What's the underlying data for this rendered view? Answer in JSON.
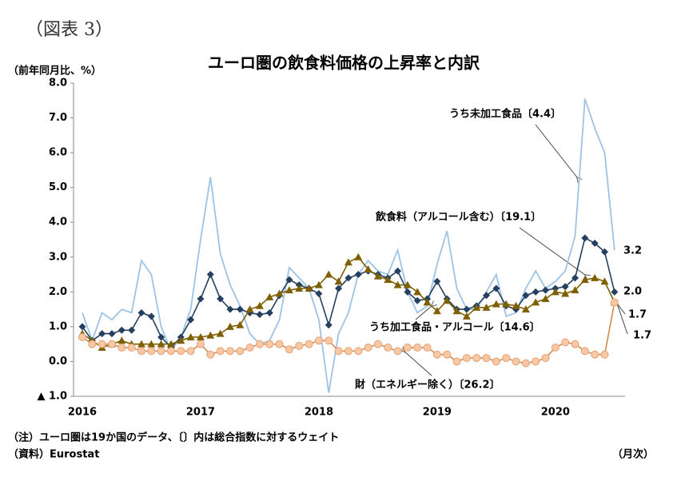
{
  "figure_label": "（図表 3）",
  "chart_data": {
    "type": "line",
    "title": "ユーロ圏の飲食料価格の上昇率と内訳",
    "y_axis_label": "（前年同月比、%）",
    "x_axis_label": "（月次）",
    "notes": [
      "（注）ユーロ圏は19か国のデータ、〔〕内は総合指数に対するウェイト",
      "（資料）Eurostat"
    ],
    "categories": [
      "2016",
      null,
      null,
      null,
      null,
      null,
      null,
      null,
      null,
      null,
      null,
      null,
      "2017",
      null,
      null,
      null,
      null,
      null,
      null,
      null,
      null,
      null,
      null,
      null,
      "2018",
      null,
      null,
      null,
      null,
      null,
      null,
      null,
      null,
      null,
      null,
      null,
      "2019",
      null,
      null,
      null,
      null,
      null,
      null,
      null,
      null,
      null,
      null,
      null,
      "2020",
      null,
      null,
      null,
      null,
      null,
      null
    ],
    "ylim": [
      -1,
      8
    ],
    "yticks": [
      {
        "value": 8,
        "label": "8.0"
      },
      {
        "value": 7,
        "label": "7.0"
      },
      {
        "value": 6,
        "label": "6.0"
      },
      {
        "value": 5,
        "label": "5.0"
      },
      {
        "value": 4,
        "label": "4.0"
      },
      {
        "value": 3,
        "label": "3.0"
      },
      {
        "value": 2,
        "label": "2.0"
      },
      {
        "value": 1,
        "label": "1.0"
      },
      {
        "value": 0,
        "label": "0.0"
      },
      {
        "value": -1,
        "label": "▲ 1.0"
      }
    ],
    "grid": false,
    "series": [
      {
        "name": "うち未加工食品〔4.4〕",
        "color": "#9dc3e6",
        "marker": "none",
        "values": [
          1.4,
          0.6,
          1.4,
          1.2,
          1.5,
          1.4,
          2.9,
          2.5,
          1.0,
          0.3,
          0.7,
          1.5,
          3.5,
          5.3,
          3.1,
          2.2,
          1.6,
          0.8,
          0.5,
          0.6,
          1.2,
          2.7,
          2.4,
          2.1,
          1.2,
          -0.9,
          0.8,
          1.4,
          2.5,
          2.9,
          2.6,
          2.5,
          3.2,
          2.0,
          1.4,
          1.6,
          2.8,
          3.75,
          2.1,
          1.5,
          1.5,
          2.0,
          2.5,
          1.3,
          1.4,
          2.1,
          2.6,
          2.1,
          2.3,
          2.6,
          3.6,
          7.55,
          6.7,
          6.0,
          3.2
        ],
        "value_labels": [
          null,
          null,
          null,
          null,
          null,
          null,
          null,
          null,
          null,
          null,
          null,
          null,
          null,
          null,
          null,
          null,
          null,
          null,
          null,
          null,
          null,
          null,
          null,
          null,
          null,
          null,
          null,
          null,
          null,
          null,
          null,
          null,
          null,
          null,
          null,
          null,
          null,
          null,
          null,
          null,
          null,
          null,
          null,
          null,
          null,
          null,
          null,
          null,
          null,
          null,
          null,
          null,
          null,
          null,
          "3.2"
        ]
      },
      {
        "name": "飲食料（アルコール含む）〔19.1〕",
        "color": "#243f60",
        "marker": "diamond",
        "values": [
          1.0,
          0.6,
          0.8,
          0.8,
          0.9,
          0.9,
          1.4,
          1.3,
          0.7,
          0.4,
          0.7,
          1.2,
          1.8,
          2.5,
          1.8,
          1.5,
          1.5,
          1.4,
          1.35,
          1.4,
          1.9,
          2.35,
          2.2,
          2.1,
          1.95,
          1.05,
          2.1,
          2.4,
          2.5,
          2.6,
          2.5,
          2.4,
          2.6,
          2.0,
          1.75,
          1.8,
          2.3,
          1.8,
          1.5,
          1.5,
          1.6,
          1.9,
          2.1,
          1.6,
          1.5,
          1.9,
          2.0,
          2.05,
          2.1,
          2.15,
          2.4,
          3.55,
          3.4,
          3.15,
          2.0
        ],
        "value_labels": [
          null,
          null,
          null,
          null,
          null,
          null,
          null,
          null,
          null,
          null,
          null,
          null,
          null,
          null,
          null,
          null,
          null,
          null,
          null,
          null,
          null,
          null,
          null,
          null,
          null,
          null,
          null,
          null,
          null,
          null,
          null,
          null,
          null,
          null,
          null,
          null,
          null,
          null,
          null,
          null,
          null,
          null,
          null,
          null,
          null,
          null,
          null,
          null,
          null,
          null,
          null,
          null,
          null,
          null,
          "2.0"
        ]
      },
      {
        "name": "うち加工食品・アルコール〔14.6〕",
        "color": "#7f6000",
        "marker": "triangle",
        "values": [
          0.8,
          0.6,
          0.4,
          0.5,
          0.6,
          0.5,
          0.5,
          0.5,
          0.5,
          0.5,
          0.6,
          0.7,
          0.7,
          0.75,
          0.8,
          1.0,
          1.05,
          1.5,
          1.6,
          1.85,
          1.95,
          2.05,
          2.1,
          2.1,
          2.2,
          2.5,
          2.3,
          2.85,
          3.0,
          2.65,
          2.45,
          2.35,
          2.2,
          2.2,
          2.0,
          1.7,
          1.45,
          1.75,
          1.45,
          1.3,
          1.55,
          1.55,
          1.65,
          1.65,
          1.6,
          1.5,
          1.7,
          1.8,
          2.0,
          1.95,
          2.05,
          2.35,
          2.4,
          2.3,
          1.7
        ],
        "value_labels": [
          null,
          null,
          null,
          null,
          null,
          null,
          null,
          null,
          null,
          null,
          null,
          null,
          null,
          null,
          null,
          null,
          null,
          null,
          null,
          null,
          null,
          null,
          null,
          null,
          null,
          null,
          null,
          null,
          null,
          null,
          null,
          null,
          null,
          null,
          null,
          null,
          null,
          null,
          null,
          null,
          null,
          null,
          null,
          null,
          null,
          null,
          null,
          null,
          null,
          null,
          null,
          null,
          null,
          null,
          "1.7"
        ]
      },
      {
        "name": "財（エネルギー除く）〔26.2〕",
        "color": "#d08a4e",
        "marker": "circle",
        "values": [
          0.7,
          0.5,
          0.5,
          0.5,
          0.4,
          0.4,
          0.3,
          0.3,
          0.3,
          0.3,
          0.3,
          0.3,
          0.5,
          0.2,
          0.3,
          0.3,
          0.3,
          0.4,
          0.5,
          0.5,
          0.5,
          0.35,
          0.45,
          0.5,
          0.6,
          0.6,
          0.3,
          0.3,
          0.3,
          0.4,
          0.5,
          0.4,
          0.3,
          0.4,
          0.4,
          0.4,
          0.2,
          0.2,
          0.0,
          0.1,
          0.1,
          0.1,
          0.0,
          0.1,
          0.0,
          -0.05,
          0.0,
          0.1,
          0.4,
          0.55,
          0.5,
          0.3,
          0.2,
          0.2,
          1.7
        ],
        "value_labels": [
          null,
          null,
          null,
          null,
          null,
          null,
          null,
          null,
          null,
          null,
          null,
          null,
          null,
          null,
          null,
          null,
          null,
          null,
          null,
          null,
          null,
          null,
          null,
          null,
          null,
          null,
          null,
          null,
          null,
          null,
          null,
          null,
          null,
          null,
          null,
          null,
          null,
          null,
          null,
          null,
          null,
          null,
          null,
          null,
          null,
          null,
          null,
          null,
          null,
          null,
          null,
          null,
          null,
          null,
          "1.7"
        ]
      }
    ]
  }
}
